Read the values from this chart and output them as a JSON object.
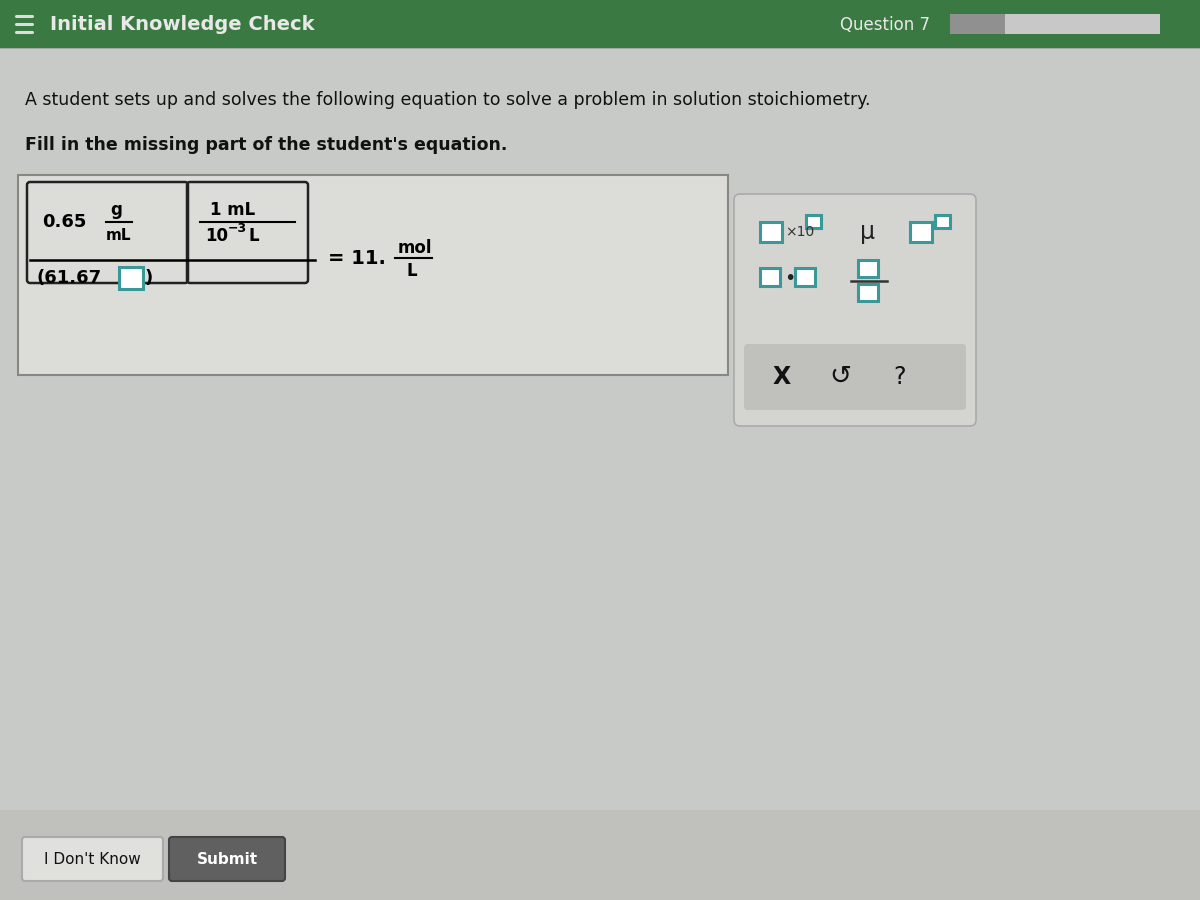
{
  "header_bg": "#3a7a42",
  "header_text_color": "#e8e8e8",
  "header_title": "Initial Knowledge Check",
  "header_question": "Question 7",
  "body_bg": "#b8bab8",
  "content_bg": "#c8cac8",
  "equation_box_bg": "#dcdcd8",
  "equation_box_border": "#888880",
  "question_text1": "A student sets up and solves the following equation to solve a problem in solution stoichiometry.",
  "question_text2": "Fill in the missing part of the student's equation.",
  "btn_dont_know": "I Don't Know",
  "btn_submit": "Submit",
  "btn_bg": "#e0e0dc",
  "btn_submit_bg": "#606060",
  "teal_color": "#3a9898",
  "toolbar_bg": "#d4d4d0",
  "toolbar_border": "#aaaaaa",
  "toolbar_bottom_bg": "#c0c0bc",
  "progress_filled": "#888888",
  "progress_empty": "#d0d0cc"
}
